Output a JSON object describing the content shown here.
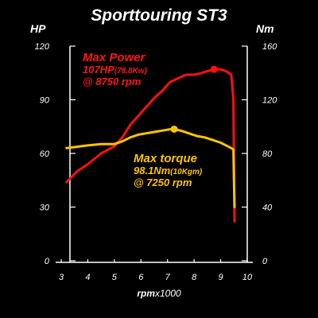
{
  "title": "Sporttouring ST3",
  "chart_data": {
    "type": "line",
    "title": "Sporttouring ST3",
    "xlabel_bold": "rpm",
    "xlabel_rest": "x1000",
    "ylabel_left": "HP",
    "ylabel_right": "Nm",
    "xlim": [
      3,
      10
    ],
    "ylim_left": [
      0,
      120
    ],
    "ylim_right": [
      0,
      160
    ],
    "xticks": [
      "3",
      "4",
      "5",
      "6",
      "7",
      "8",
      "9",
      "10"
    ],
    "yticks_left": [
      "0",
      "30",
      "60",
      "90",
      "120"
    ],
    "yticks_right": [
      "0",
      "40",
      "80",
      "120",
      "160"
    ],
    "series": [
      {
        "name": "Max Power",
        "axis": "left",
        "color": "#ff1010",
        "x": [
          3.2,
          3.6,
          4.0,
          4.5,
          5.0,
          5.3,
          5.6,
          5.9,
          6.2,
          6.5,
          6.8,
          7.1,
          7.4,
          7.7,
          8.0,
          8.3,
          8.5,
          8.75,
          9.0,
          9.2,
          9.4,
          9.48,
          9.5,
          9.52
        ],
        "values": [
          44,
          50,
          54,
          60,
          64,
          69,
          76,
          81,
          86,
          91,
          95,
          100,
          102,
          104,
          104,
          105,
          106,
          107,
          107,
          106,
          104,
          90,
          50,
          22
        ]
      },
      {
        "name": "Max torque",
        "axis": "right",
        "color": "#ffc400",
        "x": [
          3.2,
          3.6,
          4.0,
          4.5,
          5.0,
          5.3,
          5.6,
          5.9,
          6.2,
          6.5,
          6.8,
          7.1,
          7.25,
          7.5,
          7.8,
          8.1,
          8.4,
          8.7,
          9.0,
          9.3,
          9.48,
          9.5,
          9.52
        ],
        "values": [
          84,
          85,
          86,
          87,
          87,
          89,
          92,
          94,
          95,
          96,
          97,
          98,
          98.1,
          97,
          95,
          93,
          92,
          90,
          88,
          85,
          83,
          60,
          40
        ]
      }
    ],
    "markers": [
      {
        "series": "Max Power",
        "x": 8.75,
        "value": 107
      },
      {
        "series": "Max torque",
        "x": 7.25,
        "value": 98.1
      }
    ]
  },
  "annotations": {
    "power": {
      "head": "Max Power",
      "value": "107HP",
      "sub": "(78.8Kw)",
      "rpm": "@ 8750 rpm"
    },
    "torque": {
      "head": "Max torque",
      "value": "98.1Nm",
      "sub": "(10Kgm)",
      "rpm": "@ 7250 rpm"
    }
  }
}
